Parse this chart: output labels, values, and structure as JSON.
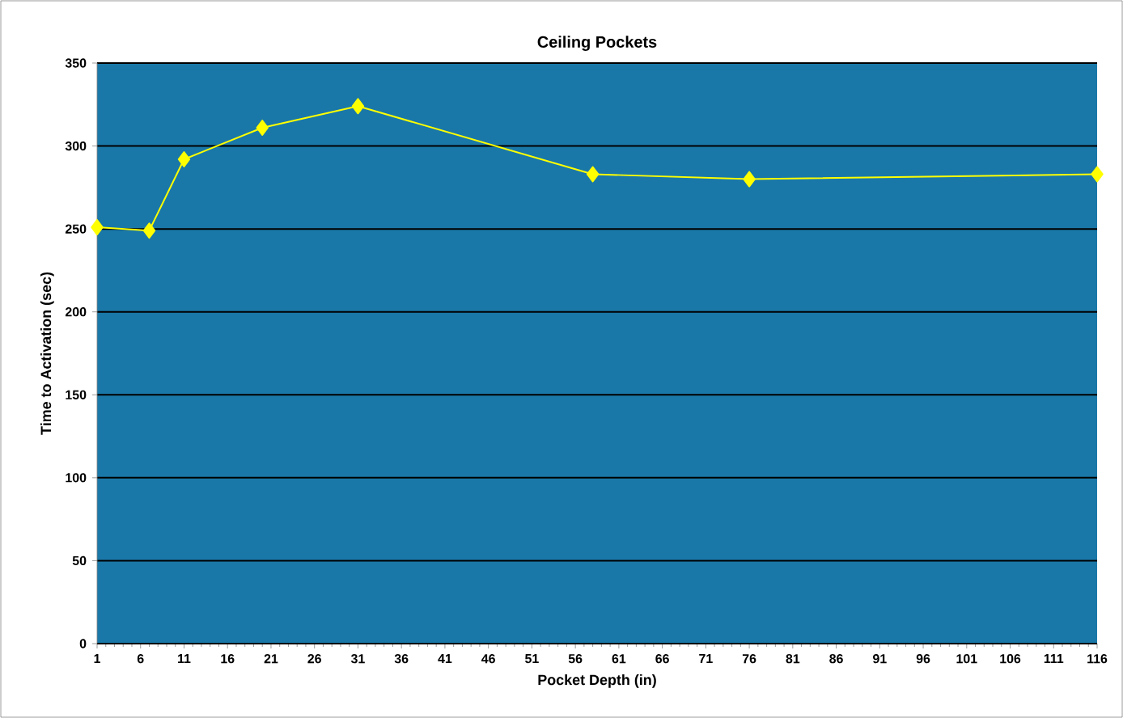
{
  "chart_data": {
    "type": "line",
    "title": "Ceiling Pockets",
    "xlabel": "Pocket Depth (in)",
    "ylabel": "Time to Activation (sec)",
    "x": [
      1,
      7,
      11,
      20,
      31,
      58,
      76,
      116
    ],
    "series": [
      {
        "color": "#ffff00",
        "values": [
          251,
          249,
          292,
          311,
          324,
          283,
          280,
          283
        ]
      }
    ],
    "xlim": [
      1,
      116
    ],
    "xticks": [
      1,
      6,
      11,
      16,
      21,
      26,
      31,
      36,
      41,
      46,
      51,
      56,
      61,
      66,
      71,
      76,
      81,
      86,
      91,
      96,
      101,
      106,
      111,
      116
    ],
    "ylim": [
      0,
      350
    ],
    "yticks": [
      0,
      50,
      100,
      150,
      200,
      250,
      300,
      350
    ],
    "grid": "y",
    "marker": "diamond",
    "line_style": "solid"
  }
}
